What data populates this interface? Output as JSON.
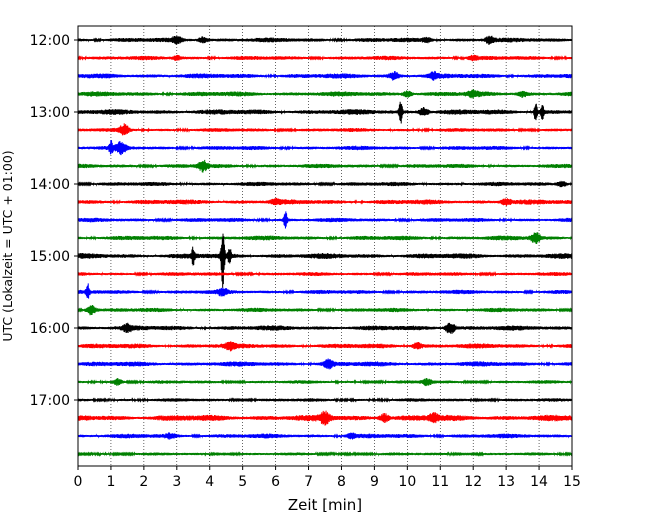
{
  "chart_data": {
    "type": "line",
    "xlabel": "Zeit  [min]",
    "ylabel": "UTC (Lokalzeit = UTC + 01:00)",
    "xlim": [
      0,
      15
    ],
    "x_ticks": [
      "0",
      "1",
      "2",
      "3",
      "4",
      "5",
      "6",
      "7",
      "8",
      "9",
      "10",
      "11",
      "12",
      "13",
      "14",
      "15"
    ],
    "y_ticks": [
      "12:00",
      "13:00",
      "14:00",
      "15:00",
      "16:00",
      "17:00"
    ],
    "grid": "vertical dotted lines at each minute",
    "trace_interval_minutes": 15,
    "trace_colors": [
      "#000000",
      "#ff0000",
      "#0000ff",
      "#008000"
    ],
    "traces": [
      {
        "start": "12:00",
        "color": "#000000",
        "amp": 2.2,
        "events": [
          {
            "t": 3.0,
            "a": 3
          },
          {
            "t": 3.8,
            "a": 3
          },
          {
            "t": 10.6,
            "a": 2
          },
          {
            "t": 12.5,
            "a": 3.5
          }
        ]
      },
      {
        "start": "12:15",
        "color": "#ff0000",
        "amp": 2.0,
        "events": [
          {
            "t": 3.0,
            "a": 2
          },
          {
            "t": 12.0,
            "a": 2
          }
        ]
      },
      {
        "start": "12:30",
        "color": "#0000ff",
        "amp": 2.4,
        "events": [
          {
            "t": 9.6,
            "a": 3.5
          },
          {
            "t": 10.8,
            "a": 3
          }
        ]
      },
      {
        "start": "12:45",
        "color": "#008000",
        "amp": 2.4,
        "events": [
          {
            "t": 10.0,
            "a": 3
          },
          {
            "t": 12.0,
            "a": 2.5
          },
          {
            "t": 13.5,
            "a": 2.5
          }
        ]
      },
      {
        "start": "13:00",
        "color": "#000000",
        "amp": 2.6,
        "events": [
          {
            "t": 9.8,
            "a": 11
          },
          {
            "t": 10.5,
            "a": 4
          },
          {
            "t": 13.9,
            "a": 10
          },
          {
            "t": 14.1,
            "a": 7
          }
        ]
      },
      {
        "start": "13:15",
        "color": "#ff0000",
        "amp": 1.8,
        "events": [
          {
            "t": 1.4,
            "a": 5
          }
        ]
      },
      {
        "start": "13:30",
        "color": "#0000ff",
        "amp": 2.0,
        "events": [
          {
            "t": 1.0,
            "a": 7
          },
          {
            "t": 1.3,
            "a": 6
          }
        ]
      },
      {
        "start": "13:45",
        "color": "#008000",
        "amp": 2.0,
        "events": [
          {
            "t": 3.8,
            "a": 5
          }
        ]
      },
      {
        "start": "14:00",
        "color": "#000000",
        "amp": 2.0,
        "events": [
          {
            "t": 14.7,
            "a": 3
          }
        ]
      },
      {
        "start": "14:15",
        "color": "#ff0000",
        "amp": 2.4,
        "events": [
          {
            "t": 6.0,
            "a": 2
          },
          {
            "t": 13.0,
            "a": 3
          }
        ]
      },
      {
        "start": "14:30",
        "color": "#0000ff",
        "amp": 2.0,
        "events": [
          {
            "t": 6.3,
            "a": 9
          }
        ]
      },
      {
        "start": "14:45",
        "color": "#008000",
        "amp": 2.2,
        "events": [
          {
            "t": 13.9,
            "a": 5
          }
        ]
      },
      {
        "start": "15:00",
        "color": "#000000",
        "amp": 2.6,
        "events": [
          {
            "t": 3.5,
            "a": 8
          },
          {
            "t": 4.4,
            "a": 32
          },
          {
            "t": 4.6,
            "a": 8
          }
        ]
      },
      {
        "start": "15:15",
        "color": "#ff0000",
        "amp": 1.8,
        "events": []
      },
      {
        "start": "15:30",
        "color": "#0000ff",
        "amp": 2.0,
        "events": [
          {
            "t": 0.3,
            "a": 7
          },
          {
            "t": 4.4,
            "a": 3
          }
        ]
      },
      {
        "start": "15:45",
        "color": "#008000",
        "amp": 2.0,
        "events": [
          {
            "t": 0.4,
            "a": 5
          }
        ]
      },
      {
        "start": "16:00",
        "color": "#000000",
        "amp": 2.4,
        "events": [
          {
            "t": 1.5,
            "a": 3
          },
          {
            "t": 11.3,
            "a": 6
          }
        ]
      },
      {
        "start": "16:15",
        "color": "#ff0000",
        "amp": 2.4,
        "events": [
          {
            "t": 4.6,
            "a": 3
          },
          {
            "t": 10.3,
            "a": 3
          }
        ]
      },
      {
        "start": "16:30",
        "color": "#0000ff",
        "amp": 2.4,
        "events": [
          {
            "t": 7.6,
            "a": 4
          }
        ]
      },
      {
        "start": "16:45",
        "color": "#008000",
        "amp": 1.6,
        "events": [
          {
            "t": 1.2,
            "a": 3
          },
          {
            "t": 10.6,
            "a": 3
          }
        ]
      },
      {
        "start": "17:00",
        "color": "#000000",
        "amp": 1.6,
        "events": []
      },
      {
        "start": "17:15",
        "color": "#ff0000",
        "amp": 3.0,
        "events": [
          {
            "t": 7.5,
            "a": 5
          },
          {
            "t": 9.3,
            "a": 4
          },
          {
            "t": 10.8,
            "a": 3.5
          }
        ]
      },
      {
        "start": "17:30",
        "color": "#0000ff",
        "amp": 2.2,
        "events": [
          {
            "t": 2.8,
            "a": 2
          },
          {
            "t": 8.3,
            "a": 2
          }
        ]
      },
      {
        "start": "17:45",
        "color": "#008000",
        "amp": 1.4,
        "events": []
      }
    ]
  }
}
